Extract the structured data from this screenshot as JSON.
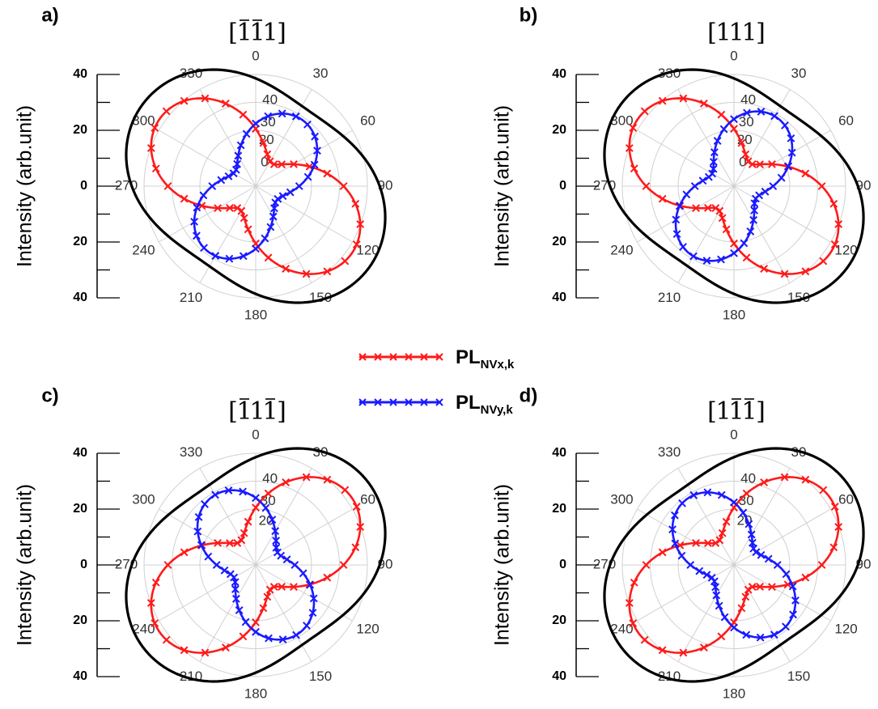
{
  "figure": {
    "legend": [
      {
        "label": "PL",
        "sub": "NVx,k",
        "color": "#ff1a1a"
      },
      {
        "label": "PL",
        "sub": "NVy,k",
        "color": "#1a1aff"
      }
    ]
  },
  "chart_data": [
    {
      "type": "polar",
      "panel_label": "a)",
      "direction": {
        "parts": [
          {
            "t": "1",
            "bar": true
          },
          {
            "t": "1",
            "bar": true
          },
          {
            "t": "1",
            "bar": false
          }
        ]
      },
      "ylabel": "Intensity (arb.unit)",
      "y_ticks": [
        "40",
        "20",
        "0",
        "20",
        "40"
      ],
      "angle_ticks": [
        "0",
        "30",
        "60",
        "90",
        "120",
        "150",
        "180",
        "210",
        "240",
        "270",
        "300",
        "330"
      ],
      "r_ticks": [
        "0",
        "20",
        "30",
        "40"
      ],
      "r_max": 40,
      "series": [
        {
          "color": "#ff1a1a",
          "marker": "x",
          "lobe_axis_deg": 125,
          "peak": 42,
          "min": 10
        },
        {
          "color": "#1a1aff",
          "marker": "x",
          "lobe_axis_deg": 35,
          "peak": 29,
          "min": 9
        },
        {
          "color": "#000000",
          "marker": "none",
          "lobe_axis_deg": 125,
          "peak": 50,
          "min": 33
        }
      ]
    },
    {
      "type": "polar",
      "panel_label": "b)",
      "direction": {
        "parts": [
          {
            "t": "1",
            "bar": false
          },
          {
            "t": "1",
            "bar": false
          },
          {
            "t": "1",
            "bar": false
          }
        ]
      },
      "ylabel": "Intensity (arb.unit)",
      "y_ticks": [
        "40",
        "20",
        "0",
        "20",
        "40"
      ],
      "angle_ticks": [
        "0",
        "30",
        "60",
        "90",
        "120",
        "150",
        "180",
        "210",
        "240",
        "270",
        "300",
        "330"
      ],
      "r_ticks": [
        "0",
        "20",
        "30",
        "40"
      ],
      "r_max": 40,
      "series": [
        {
          "color": "#ff1a1a",
          "marker": "x",
          "lobe_axis_deg": 125,
          "peak": 42,
          "min": 10
        },
        {
          "color": "#1a1aff",
          "marker": "x",
          "lobe_axis_deg": 30,
          "peak": 29,
          "min": 9
        },
        {
          "color": "#000000",
          "marker": "none",
          "lobe_axis_deg": 125,
          "peak": 50,
          "min": 33
        }
      ]
    },
    {
      "type": "polar",
      "panel_label": "c)",
      "direction": {
        "parts": [
          {
            "t": "1",
            "bar": true
          },
          {
            "t": "1",
            "bar": false
          },
          {
            "t": "1",
            "bar": true
          }
        ]
      },
      "ylabel": "Intensity (arb.unit)",
      "y_ticks": [
        "40",
        "20",
        "0",
        "20",
        "40"
      ],
      "angle_ticks": [
        "0",
        "30",
        "60",
        "90",
        "120",
        "150",
        "180",
        "210",
        "240",
        "270",
        "300",
        "330"
      ],
      "r_ticks": [
        "20",
        "30",
        "40"
      ],
      "r_max": 40,
      "series": [
        {
          "color": "#ff1a1a",
          "marker": "x",
          "lobe_axis_deg": 55,
          "peak": 42,
          "min": 10
        },
        {
          "color": "#1a1aff",
          "marker": "x",
          "lobe_axis_deg": 150,
          "peak": 29,
          "min": 9
        },
        {
          "color": "#000000",
          "marker": "none",
          "lobe_axis_deg": 55,
          "peak": 50,
          "min": 33
        }
      ]
    },
    {
      "type": "polar",
      "panel_label": "d)",
      "direction": {
        "parts": [
          {
            "t": "1",
            "bar": false
          },
          {
            "t": "1",
            "bar": true
          },
          {
            "t": "1",
            "bar": true
          }
        ]
      },
      "ylabel": "Intensity (arb.unit)",
      "y_ticks": [
        "40",
        "20",
        "0",
        "20",
        "40"
      ],
      "angle_ticks": [
        "0",
        "30",
        "60",
        "90",
        "120",
        "150",
        "180",
        "210",
        "240",
        "270",
        "300",
        "330"
      ],
      "r_ticks": [
        "20",
        "30",
        "40"
      ],
      "r_max": 40,
      "series": [
        {
          "color": "#ff1a1a",
          "marker": "x",
          "lobe_axis_deg": 55,
          "peak": 42,
          "min": 10
        },
        {
          "color": "#1a1aff",
          "marker": "x",
          "lobe_axis_deg": 145,
          "peak": 29,
          "min": 9
        },
        {
          "color": "#000000",
          "marker": "none",
          "lobe_axis_deg": 55,
          "peak": 50,
          "min": 33
        }
      ]
    }
  ]
}
